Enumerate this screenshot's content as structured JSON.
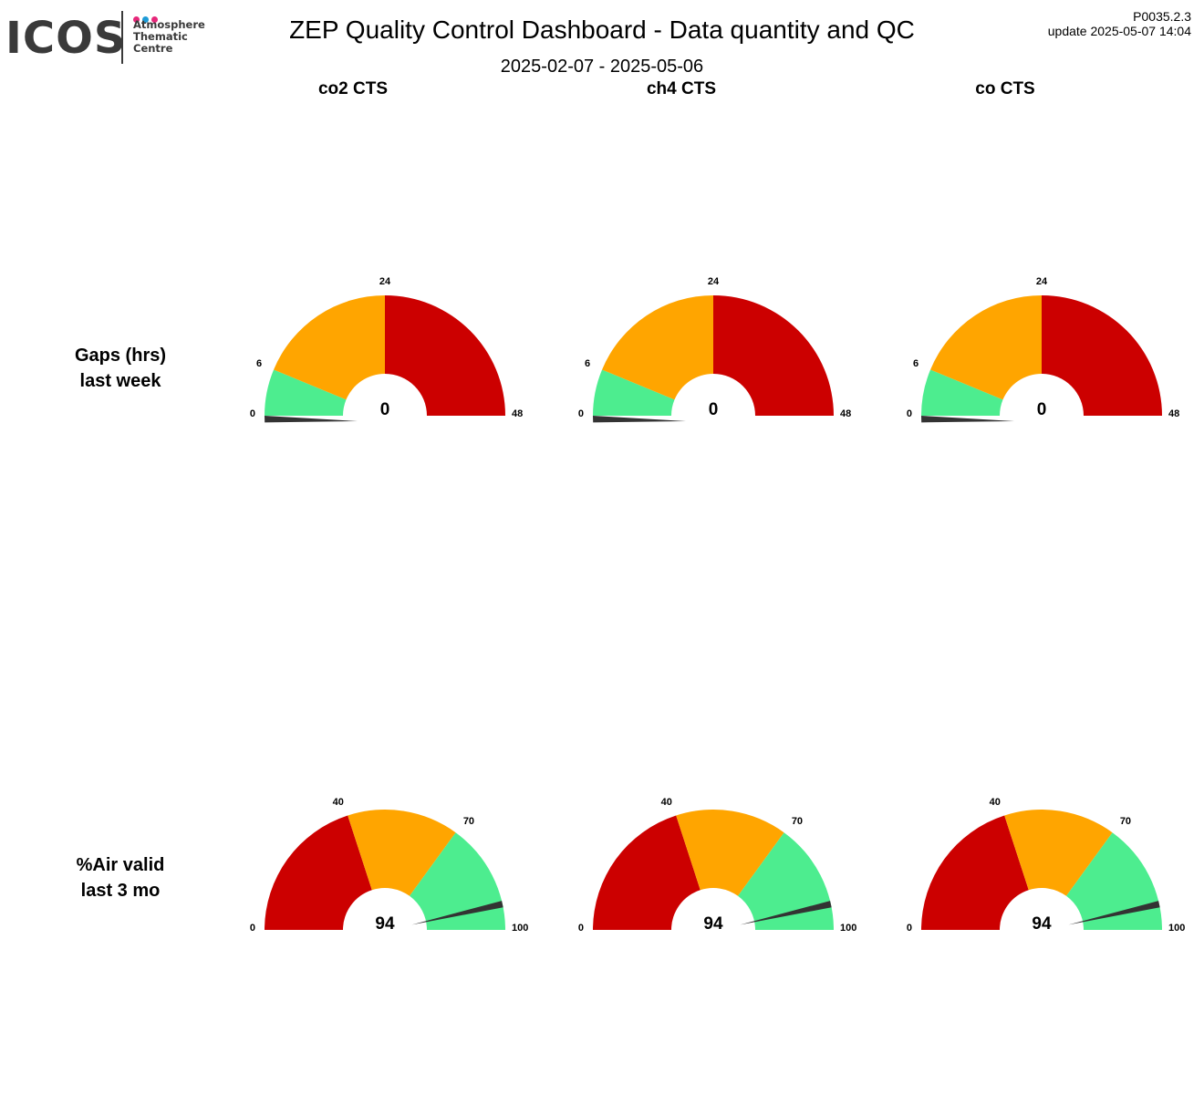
{
  "logo": {
    "word": "ICOS",
    "lines": [
      "Atmosphere",
      "Thematic",
      "Centre"
    ],
    "dot_colors": [
      "#e6287a",
      "#1e9bd7",
      "#e6287a"
    ]
  },
  "header": {
    "title": "ZEP  Quality Control Dashboard - Data quantity and QC",
    "date_range": "2025-02-07 - 2025-05-06",
    "version": "P0035.2.3",
    "update": "update  2025-05-07 14:04"
  },
  "columns": [
    "co2 CTS",
    "ch4 CTS",
    "co CTS"
  ],
  "rows": [
    {
      "line1": "Gaps (hrs)",
      "line2": "last week"
    },
    {
      "line1": "%Air valid",
      "line2": "last 3 mo"
    }
  ],
  "colors": {
    "green": "#4ded8f",
    "orange": "#ffa500",
    "red": "#cc0000",
    "needle": "#333333"
  },
  "chart_data": [
    {
      "type": "gauge",
      "row": "Gaps (hrs) last week",
      "column": "co2 CTS",
      "min": 0,
      "max": 48,
      "value": 0,
      "value_label": "0",
      "bands": [
        {
          "from": 0,
          "to": 6,
          "color": "green"
        },
        {
          "from": 6,
          "to": 24,
          "color": "orange"
        },
        {
          "from": 24,
          "to": 48,
          "color": "red"
        }
      ],
      "tick_labels": [
        "0",
        "6",
        "24",
        "48"
      ]
    },
    {
      "type": "gauge",
      "row": "Gaps (hrs) last week",
      "column": "ch4 CTS",
      "min": 0,
      "max": 48,
      "value": 0,
      "value_label": "0",
      "bands": [
        {
          "from": 0,
          "to": 6,
          "color": "green"
        },
        {
          "from": 6,
          "to": 24,
          "color": "orange"
        },
        {
          "from": 24,
          "to": 48,
          "color": "red"
        }
      ],
      "tick_labels": [
        "0",
        "6",
        "24",
        "48"
      ]
    },
    {
      "type": "gauge",
      "row": "Gaps (hrs) last week",
      "column": "co CTS",
      "min": 0,
      "max": 48,
      "value": 0,
      "value_label": "0",
      "bands": [
        {
          "from": 0,
          "to": 6,
          "color": "green"
        },
        {
          "from": 6,
          "to": 24,
          "color": "orange"
        },
        {
          "from": 24,
          "to": 48,
          "color": "red"
        }
      ],
      "tick_labels": [
        "0",
        "6",
        "24",
        "48"
      ]
    },
    {
      "type": "gauge",
      "row": "%Air valid last 3 mo",
      "column": "co2 CTS",
      "min": 0,
      "max": 100,
      "value": 94,
      "value_label": "94",
      "bands": [
        {
          "from": 0,
          "to": 40,
          "color": "red"
        },
        {
          "from": 40,
          "to": 70,
          "color": "orange"
        },
        {
          "from": 70,
          "to": 100,
          "color": "green"
        }
      ],
      "tick_labels": [
        "0",
        "40",
        "70",
        "100"
      ]
    },
    {
      "type": "gauge",
      "row": "%Air valid last 3 mo",
      "column": "ch4 CTS",
      "min": 0,
      "max": 100,
      "value": 94,
      "value_label": "94",
      "bands": [
        {
          "from": 0,
          "to": 40,
          "color": "red"
        },
        {
          "from": 40,
          "to": 70,
          "color": "orange"
        },
        {
          "from": 70,
          "to": 100,
          "color": "green"
        }
      ],
      "tick_labels": [
        "0",
        "40",
        "70",
        "100"
      ]
    },
    {
      "type": "gauge",
      "row": "%Air valid last 3 mo",
      "column": "co CTS",
      "min": 0,
      "max": 100,
      "value": 94,
      "value_label": "94",
      "bands": [
        {
          "from": 0,
          "to": 40,
          "color": "red"
        },
        {
          "from": 40,
          "to": 70,
          "color": "orange"
        },
        {
          "from": 70,
          "to": 100,
          "color": "green"
        }
      ],
      "tick_labels": [
        "0",
        "40",
        "70",
        "100"
      ]
    }
  ]
}
